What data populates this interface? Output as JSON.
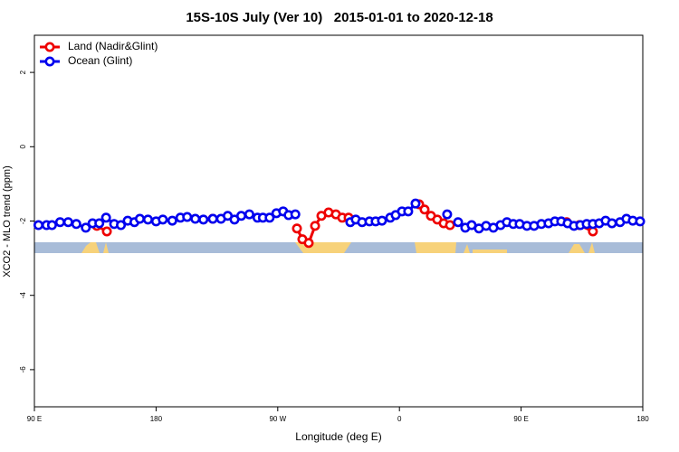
{
  "chart_data": {
    "type": "line",
    "title": "15S-10S July (Ver 10)   2015-01-01 to 2020-12-18",
    "xlabel": "Longitude (deg E)",
    "ylabel": "XCO2 - MLO trend (ppm)",
    "xlim": [
      90,
      540
    ],
    "ylim": [
      -7,
      3
    ],
    "xticks": [
      {
        "value": 90,
        "label": "90 E"
      },
      180,
      {
        "value": 270,
        "label": "90 W"
      },
      {
        "value": 360,
        "label": "0"
      },
      {
        "value": 450,
        "label": "90 E"
      },
      {
        "value": 540,
        "label": "180"
      }
    ],
    "yticks": [
      2,
      0,
      -2,
      -4,
      -6
    ],
    "grid": false,
    "legend": "top-left",
    "series": [
      {
        "name": "Land (Nadir&Glint)",
        "color": "#ee0000",
        "x": [
          136.2,
          143.6,
          null,
          221.9,
          null,
          284.2,
          288.2,
          292.9,
          297.6,
          302.3,
          307.6,
          313,
          317.7,
          322.4,
          null,
          374.6,
          378.6,
          383.3,
          388,
          392.7,
          397.4,
          null,
          483.7,
          493.1,
          503.1
        ],
        "values": [
          -2.13,
          -2.28,
          null,
          -1.94,
          null,
          -2.2,
          -2.49,
          -2.59,
          -2.13,
          -1.86,
          -1.77,
          -1.82,
          -1.91,
          -1.91,
          null,
          -1.55,
          -1.69,
          -1.86,
          -1.96,
          -2.06,
          -2.11,
          null,
          -2.03,
          -2.11,
          -2.28
        ]
      },
      {
        "name": "Ocean (Glint)",
        "color": "#0000ee",
        "x": [
          93,
          99,
          103,
          109,
          115,
          121,
          128,
          133,
          138,
          143,
          149,
          154,
          159,
          164,
          168,
          174,
          180,
          185,
          192,
          198,
          203,
          209,
          215,
          222,
          228,
          233,
          238,
          243,
          249,
          255,
          259,
          264,
          269,
          274,
          278,
          283,
          null,
          323.7,
          327.7,
          332.4,
          337.8,
          342.4,
          347.1,
          353.2,
          357.2,
          361.9,
          366.5,
          371.9,
          null,
          395.3,
          null,
          403.4,
          408.7,
          413.4,
          418.8,
          424.1,
          429.5,
          434.8,
          439.5,
          444.2,
          448.9,
          454.3,
          459.6,
          465,
          470.3,
          475,
          479.7,
          484.4,
          489.1,
          493.8,
          498.5,
          503.1,
          507.8,
          512.5,
          517.2,
          523.2,
          527.9,
          532.6,
          538
        ],
        "values": [
          -2.11,
          -2.11,
          -2.11,
          -2.03,
          -2.03,
          -2.08,
          -2.18,
          -2.06,
          -2.06,
          -1.91,
          -2.08,
          -2.11,
          -1.99,
          -2.03,
          -1.94,
          -1.96,
          -2.01,
          -1.96,
          -1.99,
          -1.91,
          -1.89,
          -1.94,
          -1.96,
          -1.94,
          -1.94,
          -1.86,
          -1.96,
          -1.86,
          -1.82,
          -1.91,
          -1.91,
          -1.91,
          -1.79,
          -1.74,
          -1.84,
          -1.82,
          null,
          -2.03,
          -1.96,
          -2.03,
          -2.01,
          -2.01,
          -1.99,
          -1.91,
          -1.84,
          -1.74,
          -1.74,
          -1.53,
          null,
          -1.82,
          null,
          -2.03,
          -2.18,
          -2.11,
          -2.2,
          -2.13,
          -2.18,
          -2.11,
          -2.03,
          -2.08,
          -2.08,
          -2.13,
          -2.13,
          -2.08,
          -2.06,
          -2.01,
          -2.01,
          -2.06,
          -2.13,
          -2.11,
          -2.08,
          -2.08,
          -2.06,
          -1.99,
          -2.06,
          -2.03,
          -1.94,
          -1.99,
          -2.01
        ]
      }
    ]
  }
}
